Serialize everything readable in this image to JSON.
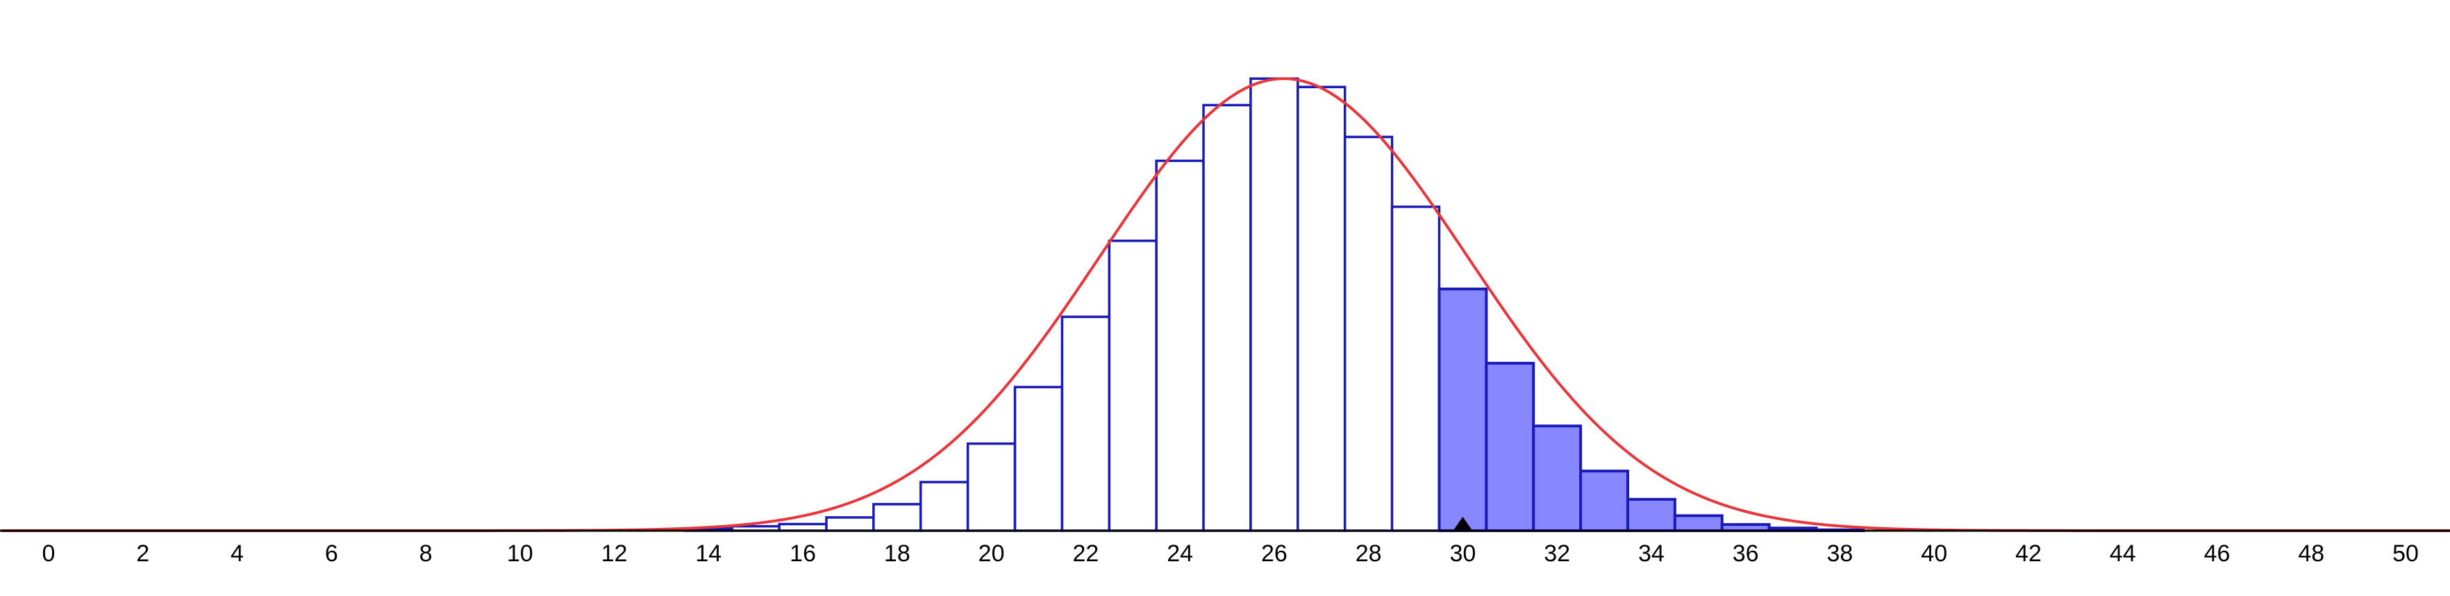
{
  "chart_data": {
    "type": "bar",
    "x_ticks": [
      "0",
      "2",
      "4",
      "6",
      "8",
      "10",
      "12",
      "14",
      "16",
      "18",
      "20",
      "22",
      "24",
      "26",
      "28",
      "30",
      "32",
      "34",
      "36",
      "38",
      "40",
      "42",
      "44",
      "46",
      "48",
      "50"
    ],
    "xlim": [
      -1,
      51
    ],
    "ylim": [
      0,
      0.105
    ],
    "bars": {
      "x": [
        14,
        15,
        16,
        17,
        18,
        19,
        20,
        21,
        22,
        23,
        24,
        25,
        26,
        27,
        28,
        29,
        30,
        31,
        32,
        33,
        34,
        35,
        36,
        37,
        38
      ],
      "values": [
        0.0005,
        0.001,
        0.0015,
        0.003,
        0.006,
        0.011,
        0.0197,
        0.0325,
        0.0484,
        0.0656,
        0.0837,
        0.0963,
        0.1023,
        0.1004,
        0.0891,
        0.0733,
        0.0547,
        0.0379,
        0.0237,
        0.0135,
        0.0071,
        0.0034,
        0.0014,
        0.0006,
        0.0002
      ]
    },
    "shaded_from_x": 30,
    "marker_x": 30,
    "curve": {
      "type": "normal",
      "mean": 26.2,
      "sd": 3.9
    },
    "colors": {
      "bar_stroke": "#1a1ab8",
      "bar_fill_plain": "#ffffff",
      "bar_fill_shaded": "#8787ff",
      "curve": "#e8373c",
      "axis": "#000000",
      "marker": "#000000"
    },
    "grid": false,
    "legend": "none"
  }
}
